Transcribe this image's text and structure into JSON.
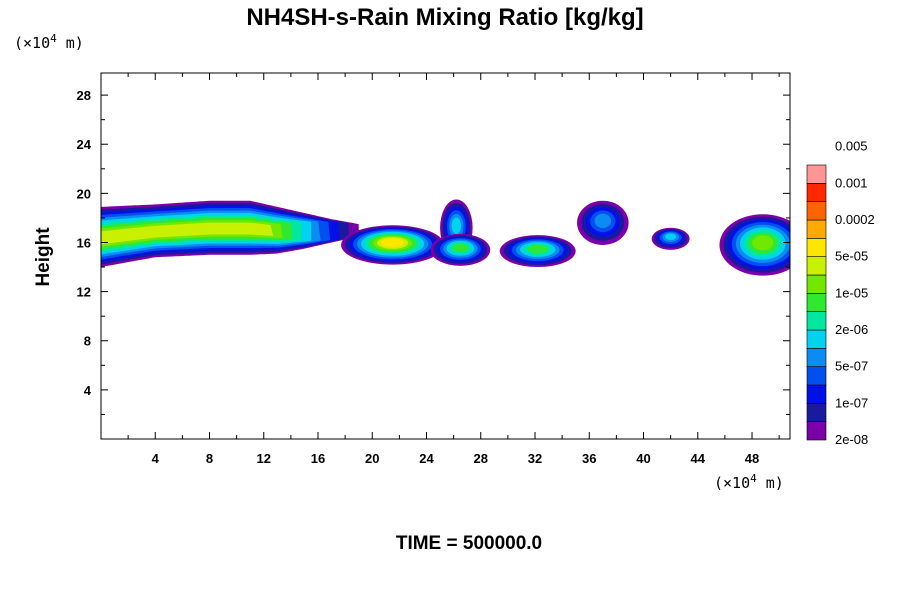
{
  "chart_data": {
    "type": "heatmap",
    "title": "NH4SH-s-Rain Mixing Ratio [kg/kg]",
    "ylabel": "Height",
    "x_unit": {
      "prefix": "(×10",
      "exp": "4",
      "suffix": " m)"
    },
    "y_unit": {
      "prefix": "(×10",
      "exp": "4",
      "suffix": " m)"
    },
    "xlim": [
      0,
      50.8
    ],
    "ylim": [
      0,
      29.8
    ],
    "x_ticks": [
      4,
      8,
      12,
      16,
      20,
      24,
      28,
      32,
      36,
      40,
      44,
      48
    ],
    "y_ticks": [
      4,
      8,
      12,
      16,
      20,
      24,
      28
    ],
    "x_tick_labels": [
      "4",
      "8",
      "12",
      "16",
      "20",
      "24",
      "28",
      "32",
      "36",
      "40",
      "44",
      "48"
    ],
    "y_tick_labels": [
      "4",
      "8",
      "12",
      "16",
      "20",
      "24",
      "28"
    ],
    "colorbar": {
      "colors": [
        "#7b00a8",
        "#1a1aa0",
        "#0010e6",
        "#0050f0",
        "#0a8cf0",
        "#00d2f0",
        "#00e8a0",
        "#30e830",
        "#70e800",
        "#c8f000",
        "#ffe600",
        "#ffaa00",
        "#ff6400",
        "#ff2800",
        "#ff9696"
      ],
      "labels": [
        {
          "text": "2e-08",
          "level": 1
        },
        {
          "text": "1e-07",
          "level": 3
        },
        {
          "text": "5e-07",
          "level": 5
        },
        {
          "text": "2e-06",
          "level": 7
        },
        {
          "text": "1e-05",
          "level": 9
        },
        {
          "text": "5e-05",
          "level": 11
        },
        {
          "text": "0.0002",
          "level": 13
        },
        {
          "text": "0.001",
          "level": 15
        },
        {
          "text": "0.005",
          "level": 17
        }
      ]
    },
    "features": [
      {
        "name": "main-band",
        "level": 10,
        "top": [
          [
            0,
            18.9
          ],
          [
            4,
            19.1
          ],
          [
            8,
            19.4
          ],
          [
            11,
            19.4
          ],
          [
            13,
            18.9
          ],
          [
            15,
            18.4
          ],
          [
            17,
            17.9
          ],
          [
            19,
            17.5
          ]
        ],
        "bottom": [
          [
            0,
            14.0
          ],
          [
            4,
            14.8
          ],
          [
            8,
            15.0
          ],
          [
            11,
            15.0
          ],
          [
            13,
            15.1
          ],
          [
            15,
            15.5
          ],
          [
            17,
            16.0
          ],
          [
            19,
            16.5
          ]
        ]
      },
      {
        "name": "blob-22",
        "level": 11,
        "cx": 21.5,
        "cy": 15.8,
        "rx": 3.8,
        "ry": 1.6
      },
      {
        "name": "spike-26",
        "level": 6,
        "cx": 26.2,
        "cy": 17.2,
        "rx": 1.2,
        "ry": 2.3
      },
      {
        "name": "blob-27",
        "level": 8,
        "cx": 26.5,
        "cy": 15.4,
        "rx": 2.2,
        "ry": 1.3
      },
      {
        "name": "blob-32",
        "level": 8,
        "cx": 32.2,
        "cy": 15.3,
        "rx": 2.8,
        "ry": 1.3
      },
      {
        "name": "blob-37",
        "level": 5,
        "cx": 37.0,
        "cy": 17.6,
        "rx": 1.9,
        "ry": 1.8
      },
      {
        "name": "blob-42",
        "level": 6,
        "cx": 42.0,
        "cy": 16.3,
        "rx": 1.4,
        "ry": 0.9
      },
      {
        "name": "blob-48",
        "level": 9,
        "cx": 48.8,
        "cy": 15.8,
        "rx": 3.2,
        "ry": 2.5
      }
    ]
  },
  "footer": {
    "time_label": "TIME = 500000.0"
  }
}
